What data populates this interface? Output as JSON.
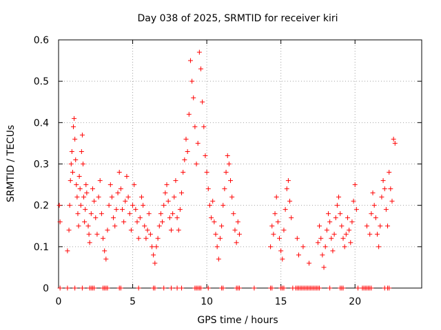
{
  "chart_data": {
    "type": "scatter",
    "title": "Day 038 of 2025, SRMTID for receiver kiri",
    "xlabel": "GPS time / hours",
    "ylabel": "SRMTID / TECUs",
    "xlim": [
      0,
      24.5
    ],
    "ylim": [
      0,
      0.6
    ],
    "xticks": [
      0,
      5,
      10,
      15,
      20
    ],
    "yticks": [
      0,
      0.1,
      0.2,
      0.3,
      0.4,
      0.5,
      0.6
    ],
    "xtick_labels": [
      "0",
      "5",
      "10",
      "15",
      "20"
    ],
    "ytick_labels": [
      "0",
      "0.1",
      "0.2",
      "0.3",
      "0.4",
      "0.5",
      "0.6"
    ],
    "grid": true,
    "marker": "plus",
    "color": "#ff0000",
    "series": [
      {
        "name": "SRMTID",
        "x": [
          0.05,
          0.1,
          0.6,
          0.7,
          0.75,
          0.8,
          0.85,
          0.9,
          0.95,
          1.0,
          1.05,
          1.1,
          1.15,
          1.2,
          1.25,
          1.3,
          1.35,
          1.4,
          1.45,
          1.5,
          1.55,
          1.6,
          1.65,
          1.7,
          1.75,
          1.8,
          1.85,
          1.9,
          2.0,
          2.05,
          2.1,
          2.2,
          2.3,
          2.4,
          2.5,
          2.6,
          2.7,
          2.8,
          2.9,
          3.0,
          3.1,
          3.2,
          3.3,
          3.4,
          3.5,
          3.6,
          3.7,
          3.8,
          3.9,
          4.0,
          4.1,
          4.2,
          4.3,
          4.4,
          4.5,
          4.6,
          4.7,
          4.8,
          4.9,
          5.0,
          5.1,
          5.2,
          5.3,
          5.4,
          5.5,
          5.6,
          5.7,
          5.8,
          5.9,
          6.0,
          6.1,
          6.2,
          6.3,
          6.4,
          6.5,
          6.6,
          6.7,
          6.8,
          6.9,
          7.0,
          7.1,
          7.2,
          7.3,
          7.4,
          7.5,
          7.6,
          7.7,
          7.8,
          7.9,
          8.0,
          8.1,
          8.2,
          8.3,
          8.4,
          8.5,
          8.6,
          8.7,
          8.8,
          8.9,
          9.0,
          9.1,
          9.2,
          9.3,
          9.4,
          9.5,
          9.6,
          9.7,
          9.8,
          9.9,
          10.0,
          10.1,
          10.2,
          10.3,
          10.4,
          10.5,
          10.6,
          10.7,
          10.8,
          10.9,
          11.0,
          11.1,
          11.2,
          11.3,
          11.4,
          11.5,
          11.6,
          11.7,
          11.8,
          11.9,
          12.0,
          12.1,
          12.2,
          14.3,
          14.4,
          14.5,
          14.6,
          14.7,
          14.8,
          14.9,
          15.0,
          15.1,
          15.2,
          15.3,
          15.4,
          15.5,
          15.6,
          15.7,
          16.1,
          16.2,
          16.5,
          16.9,
          17.5,
          17.6,
          17.7,
          17.8,
          17.9,
          18.0,
          18.1,
          18.2,
          18.3,
          18.4,
          18.5,
          18.6,
          18.7,
          18.8,
          18.9,
          19.0,
          19.1,
          19.2,
          19.3,
          19.4,
          19.5,
          19.6,
          19.7,
          19.8,
          19.9,
          20.0,
          20.1,
          20.8,
          21.0,
          21.1,
          21.2,
          21.3,
          21.4,
          21.5,
          21.6,
          21.7,
          21.8,
          21.9,
          22.0,
          22.1,
          22.2,
          22.3,
          22.4,
          22.5,
          22.6,
          22.7
        ],
        "y": [
          0.2,
          0.16,
          0.09,
          0.14,
          0.2,
          0.26,
          0.3,
          0.33,
          0.28,
          0.39,
          0.41,
          0.36,
          0.31,
          0.25,
          0.22,
          0.18,
          0.15,
          0.27,
          0.24,
          0.2,
          0.33,
          0.37,
          0.3,
          0.22,
          0.16,
          0.19,
          0.25,
          0.23,
          0.15,
          0.13,
          0.11,
          0.18,
          0.24,
          0.21,
          0.17,
          0.13,
          0.22,
          0.26,
          0.18,
          0.12,
          0.09,
          0.07,
          0.14,
          0.2,
          0.25,
          0.22,
          0.17,
          0.15,
          0.19,
          0.23,
          0.28,
          0.24,
          0.19,
          0.16,
          0.21,
          0.27,
          0.22,
          0.18,
          0.14,
          0.2,
          0.25,
          0.19,
          0.16,
          0.12,
          0.17,
          0.22,
          0.2,
          0.15,
          0.12,
          0.14,
          0.18,
          0.13,
          0.1,
          0.08,
          0.06,
          0.1,
          0.12,
          0.15,
          0.18,
          0.16,
          0.2,
          0.23,
          0.25,
          0.21,
          0.17,
          0.14,
          0.18,
          0.22,
          0.26,
          0.17,
          0.14,
          0.19,
          0.23,
          0.28,
          0.31,
          0.36,
          0.33,
          0.42,
          0.55,
          0.5,
          0.46,
          0.39,
          0.3,
          0.35,
          0.57,
          0.53,
          0.45,
          0.39,
          0.32,
          0.28,
          0.24,
          0.2,
          0.17,
          0.21,
          0.16,
          0.13,
          0.1,
          0.07,
          0.12,
          0.15,
          0.2,
          0.24,
          0.28,
          0.32,
          0.3,
          0.26,
          0.22,
          0.18,
          0.14,
          0.11,
          0.16,
          0.13,
          0.1,
          0.15,
          0.13,
          0.18,
          0.22,
          0.16,
          0.12,
          0.09,
          0.07,
          0.14,
          0.19,
          0.24,
          0.26,
          0.21,
          0.17,
          0.12,
          0.08,
          0.1,
          0.06,
          0.11,
          0.15,
          0.12,
          0.08,
          0.05,
          0.1,
          0.14,
          0.18,
          0.16,
          0.12,
          0.09,
          0.13,
          0.17,
          0.2,
          0.22,
          0.18,
          0.15,
          0.12,
          0.1,
          0.13,
          0.17,
          0.14,
          0.11,
          0.16,
          0.21,
          0.25,
          0.19,
          0.15,
          0.13,
          0.18,
          0.23,
          0.2,
          0.17,
          0.13,
          0.1,
          0.15,
          0.22,
          0.26,
          0.24,
          0.19,
          0.15,
          0.28,
          0.24,
          0.21,
          0.36,
          0.35
        ]
      }
    ],
    "baseline_markers_x": [
      0.1,
      0.6,
      1.1,
      1.6,
      2.1,
      2.2,
      2.3,
      2.4,
      3.0,
      3.1,
      3.2,
      3.3,
      4.1,
      4.2,
      5.4,
      6.4,
      6.5,
      7.1,
      7.6,
      8.0,
      8.3,
      9.2,
      9.3,
      9.4,
      9.5,
      9.6,
      10.1,
      11.0,
      11.1,
      12.0,
      12.1,
      12.2,
      13.2,
      14.3,
      14.4,
      15.0,
      15.1,
      15.2,
      15.8,
      16.0,
      16.1,
      16.2,
      16.3,
      16.4,
      16.5,
      16.6,
      16.7,
      16.8,
      16.9,
      17.0,
      17.1,
      17.2,
      17.3,
      17.4,
      17.5,
      17.6,
      18.3,
      19.0,
      19.1,
      19.2,
      20.2,
      20.5,
      20.6,
      20.7,
      20.8,
      20.9,
      21.0,
      21.1,
      22.0,
      22.2,
      22.3
    ]
  }
}
